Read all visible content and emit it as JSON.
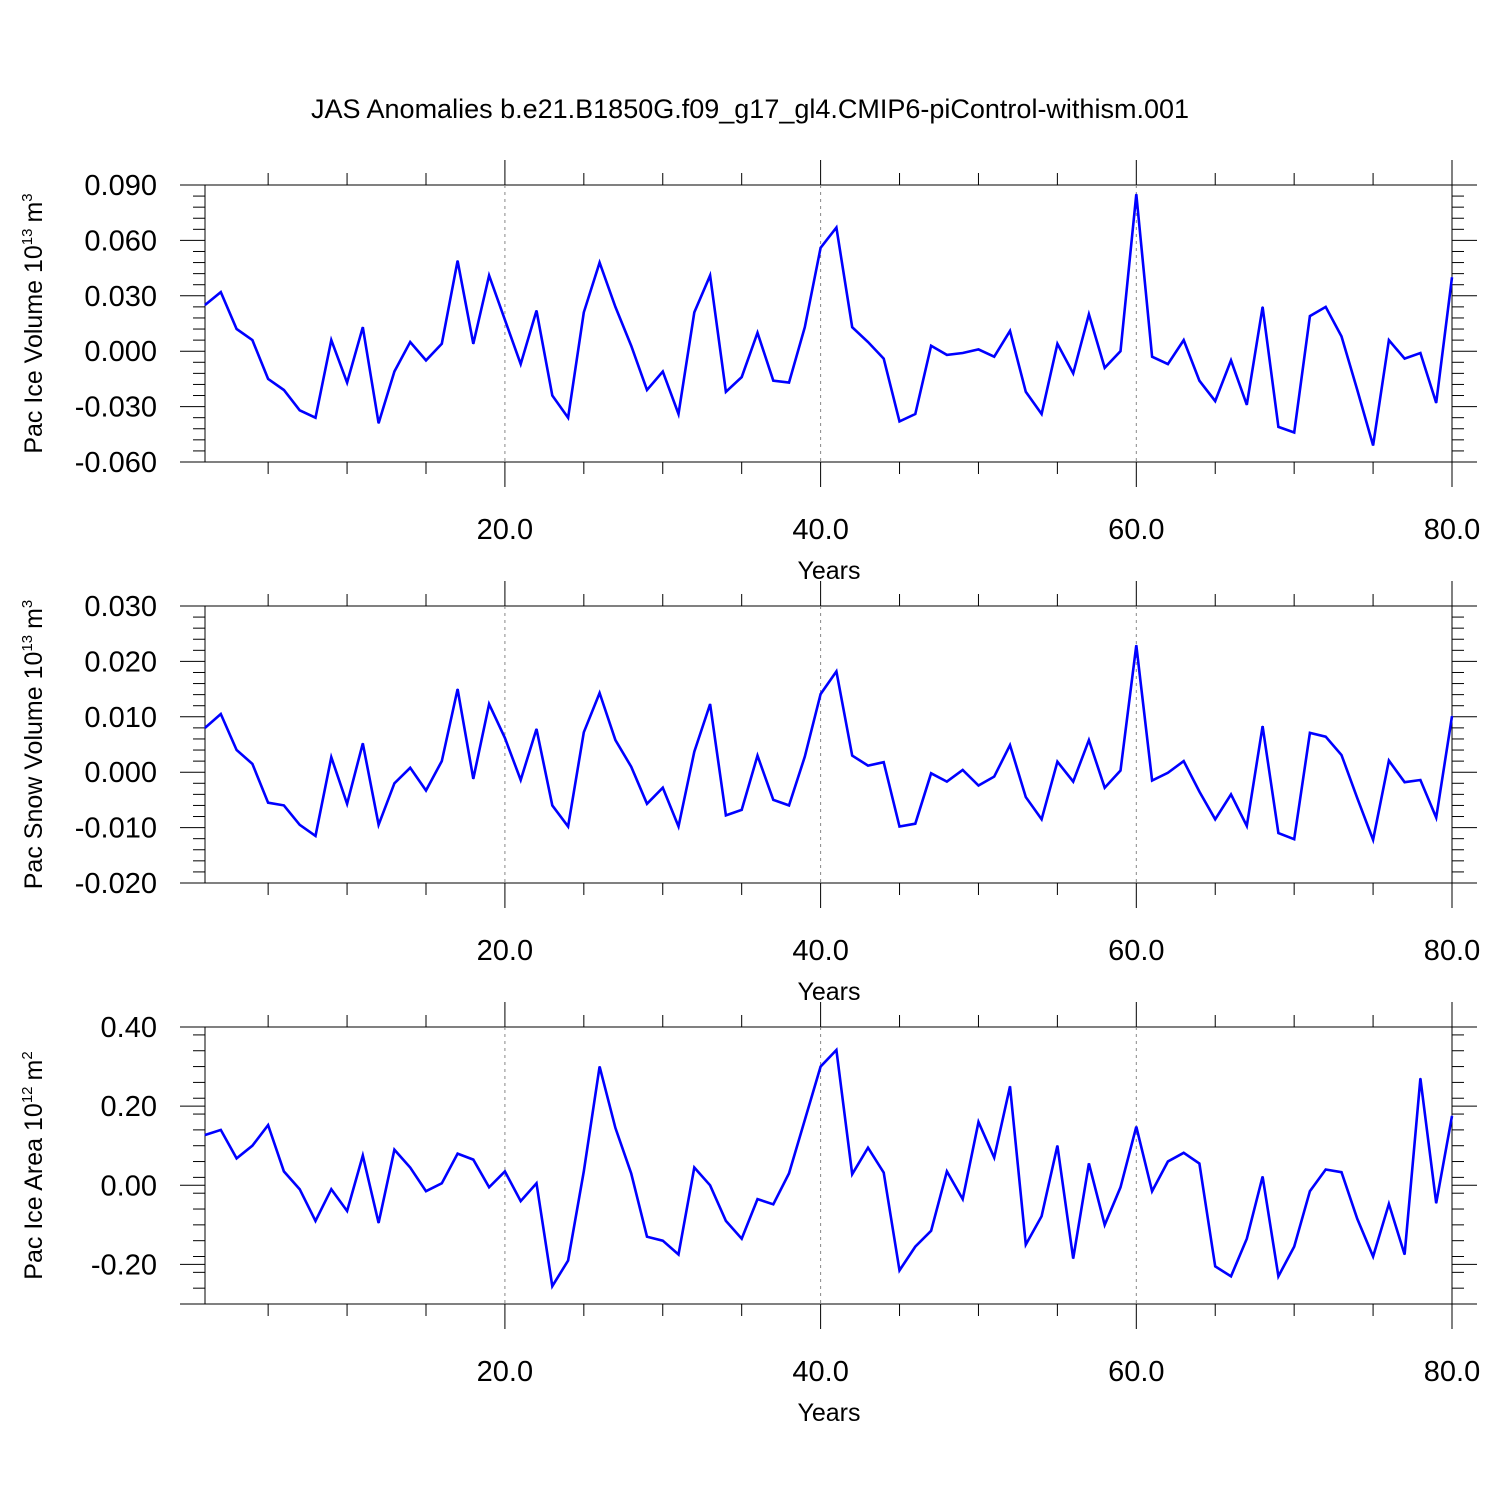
{
  "title": "JAS Anomalies b.e21.B1850G.f09_g17_gl4.CMIP6-piControl-withism.001",
  "colors": {
    "line": "#0000ff",
    "axis": "#000000",
    "grid": "#888888",
    "background": "#ffffff"
  },
  "chart_data": [
    {
      "type": "line",
      "ylabel_main": "Pac Ice Volume 10",
      "ylabel_exp": "13",
      "ylabel_unit": "m",
      "ylabel_unit_exp": "3",
      "xlabel": "Years",
      "xlim": [
        1,
        80
      ],
      "ylim": [
        -0.06,
        0.09
      ],
      "yticks": [
        -0.06,
        -0.03,
        0.0,
        0.03,
        0.06,
        0.09
      ],
      "ytick_labels": [
        "-0.060",
        "-0.030",
        "0.000",
        "0.030",
        "0.060",
        "0.090"
      ],
      "xticks": [
        20,
        40,
        60,
        80
      ],
      "xtick_labels": [
        "20.0",
        "40.0",
        "60.0",
        "80.0"
      ],
      "vgrid": [
        20,
        40,
        60
      ],
      "grid": "dashed vertical at x ticks",
      "x": [
        1,
        2,
        3,
        4,
        5,
        6,
        7,
        8,
        9,
        10,
        11,
        12,
        13,
        14,
        15,
        16,
        17,
        18,
        19,
        20,
        21,
        22,
        23,
        24,
        25,
        26,
        27,
        28,
        29,
        30,
        31,
        32,
        33,
        34,
        35,
        36,
        37,
        38,
        39,
        40,
        41,
        42,
        43,
        44,
        45,
        46,
        47,
        48,
        49,
        50,
        51,
        52,
        53,
        54,
        55,
        56,
        57,
        58,
        59,
        60,
        61,
        62,
        63,
        64,
        65,
        66,
        67,
        68,
        69,
        70,
        71,
        72,
        73,
        74,
        75,
        76,
        77,
        78,
        79,
        80
      ],
      "series": [
        {
          "values": [
            0.025,
            0.032,
            0.012,
            0.006,
            -0.015,
            -0.021,
            -0.032,
            -0.036,
            0.006,
            -0.017,
            0.013,
            -0.039,
            -0.011,
            0.005,
            -0.005,
            0.004,
            0.049,
            0.004,
            0.041,
            0.017,
            -0.007,
            0.022,
            -0.024,
            -0.036,
            0.021,
            0.048,
            0.024,
            0.003,
            -0.021,
            -0.011,
            -0.034,
            0.021,
            0.041,
            -0.022,
            -0.014,
            0.01,
            -0.016,
            -0.017,
            0.013,
            0.056,
            0.067,
            0.013,
            0.005,
            -0.004,
            -0.038,
            -0.034,
            0.003,
            -0.002,
            -0.001,
            0.001,
            -0.003,
            0.011,
            -0.022,
            -0.034,
            0.004,
            -0.012,
            0.02,
            -0.009,
            0.0,
            0.085,
            -0.003,
            -0.007,
            0.006,
            -0.016,
            -0.027,
            -0.005,
            -0.029,
            0.024,
            -0.041,
            -0.044,
            0.019,
            0.024,
            0.008,
            -0.021,
            -0.051,
            0.006,
            -0.004,
            -0.001,
            -0.028,
            0.04
          ]
        }
      ]
    },
    {
      "type": "line",
      "ylabel_main": "Pac Snow Volume 10",
      "ylabel_exp": "13",
      "ylabel_unit": "m",
      "ylabel_unit_exp": "3",
      "xlabel": "Years",
      "xlim": [
        1,
        80
      ],
      "ylim": [
        -0.02,
        0.03
      ],
      "yticks": [
        -0.02,
        -0.01,
        0.0,
        0.01,
        0.02,
        0.03
      ],
      "ytick_labels": [
        "-0.020",
        "-0.010",
        "0.000",
        "0.010",
        "0.020",
        "0.030"
      ],
      "xticks": [
        20,
        40,
        60,
        80
      ],
      "xtick_labels": [
        "20.0",
        "40.0",
        "60.0",
        "80.0"
      ],
      "vgrid": [
        20,
        40,
        60
      ],
      "grid": "dashed vertical at x ticks",
      "x": [
        1,
        2,
        3,
        4,
        5,
        6,
        7,
        8,
        9,
        10,
        11,
        12,
        13,
        14,
        15,
        16,
        17,
        18,
        19,
        20,
        21,
        22,
        23,
        24,
        25,
        26,
        27,
        28,
        29,
        30,
        31,
        32,
        33,
        34,
        35,
        36,
        37,
        38,
        39,
        40,
        41,
        42,
        43,
        44,
        45,
        46,
        47,
        48,
        49,
        50,
        51,
        52,
        53,
        54,
        55,
        56,
        57,
        58,
        59,
        60,
        61,
        62,
        63,
        64,
        65,
        66,
        67,
        68,
        69,
        70,
        71,
        72,
        73,
        74,
        75,
        76,
        77,
        78,
        79,
        80
      ],
      "series": [
        {
          "values": [
            0.008,
            0.0105,
            0.004,
            0.0015,
            -0.0055,
            -0.006,
            -0.0095,
            -0.0115,
            0.0027,
            -0.0057,
            0.0052,
            -0.0095,
            -0.002,
            0.0008,
            -0.0033,
            0.002,
            0.015,
            -0.0012,
            0.0123,
            0.0062,
            -0.0014,
            0.0078,
            -0.006,
            -0.0098,
            0.0072,
            0.0143,
            0.0058,
            0.001,
            -0.0057,
            -0.0028,
            -0.0098,
            0.0037,
            0.0123,
            -0.0078,
            -0.0068,
            0.003,
            -0.005,
            -0.006,
            0.0028,
            0.0141,
            0.0182,
            0.003,
            0.0012,
            0.0018,
            -0.0098,
            -0.0093,
            -0.0002,
            -0.0017,
            0.0004,
            -0.0024,
            -0.0008,
            0.0049,
            -0.0045,
            -0.0085,
            0.0019,
            -0.0017,
            0.0058,
            -0.0028,
            0.0003,
            0.0229,
            -0.0015,
            -0.0001,
            0.002,
            -0.0035,
            -0.0085,
            -0.004,
            -0.0097,
            0.0083,
            -0.011,
            -0.0121,
            0.0071,
            0.0064,
            0.0031,
            -0.0047,
            -0.0122,
            0.0021,
            -0.0018,
            -0.0014,
            -0.0082,
            0.0101
          ]
        }
      ]
    },
    {
      "type": "line",
      "ylabel_main": "Pac Ice Area 10",
      "ylabel_exp": "12",
      "ylabel_unit": "m",
      "ylabel_unit_exp": "2",
      "xlabel": "Years",
      "xlim": [
        1,
        80
      ],
      "ylim": [
        -0.3,
        0.4
      ],
      "yticks": [
        -0.2,
        0.0,
        0.2,
        0.4
      ],
      "ytick_labels": [
        "-0.20",
        "0.00",
        "0.20",
        "0.40"
      ],
      "xticks": [
        20,
        40,
        60,
        80
      ],
      "xtick_labels": [
        "20.0",
        "40.0",
        "60.0",
        "80.0"
      ],
      "vgrid": [
        20,
        40,
        60
      ],
      "grid": "dashed vertical at x ticks",
      "x": [
        1,
        2,
        3,
        4,
        5,
        6,
        7,
        8,
        9,
        10,
        11,
        12,
        13,
        14,
        15,
        16,
        17,
        18,
        19,
        20,
        21,
        22,
        23,
        24,
        25,
        26,
        27,
        28,
        29,
        30,
        31,
        32,
        33,
        34,
        35,
        36,
        37,
        38,
        39,
        40,
        41,
        42,
        43,
        44,
        45,
        46,
        47,
        48,
        49,
        50,
        51,
        52,
        53,
        54,
        55,
        56,
        57,
        58,
        59,
        60,
        61,
        62,
        63,
        64,
        65,
        66,
        67,
        68,
        69,
        70,
        71,
        72,
        73,
        74,
        75,
        76,
        77,
        78,
        79,
        80
      ],
      "series": [
        {
          "values": [
            0.127,
            0.14,
            0.068,
            0.1,
            0.152,
            0.035,
            -0.01,
            -0.09,
            -0.01,
            -0.065,
            0.075,
            -0.095,
            0.09,
            0.045,
            -0.015,
            0.005,
            0.08,
            0.065,
            -0.005,
            0.035,
            -0.04,
            0.005,
            -0.255,
            -0.19,
            0.035,
            0.3,
            0.145,
            0.03,
            -0.13,
            -0.14,
            -0.175,
            0.045,
            0.0,
            -0.09,
            -0.135,
            -0.035,
            -0.048,
            0.03,
            0.165,
            0.3,
            0.342,
            0.028,
            0.095,
            0.032,
            -0.215,
            -0.155,
            -0.115,
            0.035,
            -0.035,
            0.16,
            0.07,
            0.25,
            -0.15,
            -0.078,
            0.1,
            -0.185,
            0.055,
            -0.1,
            -0.005,
            0.148,
            -0.015,
            0.06,
            0.082,
            0.055,
            -0.205,
            -0.23,
            -0.135,
            0.022,
            -0.23,
            -0.155,
            -0.015,
            0.04,
            0.033,
            -0.085,
            -0.18,
            -0.047,
            -0.175,
            0.27,
            -0.045,
            0.175
          ]
        }
      ]
    }
  ]
}
